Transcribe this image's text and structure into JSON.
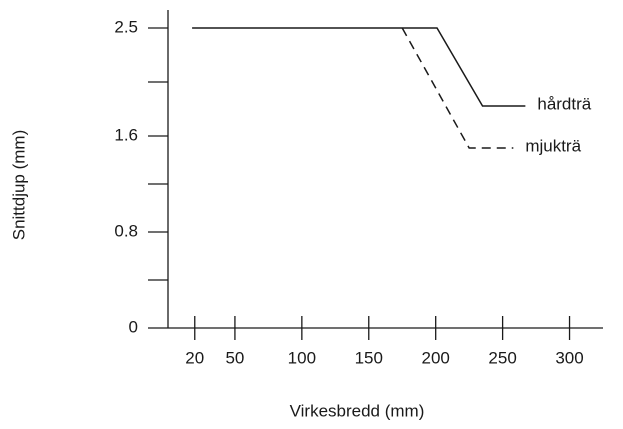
{
  "chart_data": {
    "type": "line",
    "xlabel": "Virkesbredd (mm)",
    "ylabel": "Snittdjup (mm)",
    "xlim": [
      0,
      325
    ],
    "xticks": [
      20,
      50,
      100,
      150,
      200,
      250,
      300
    ],
    "ylim": [
      0,
      2.65
    ],
    "yticks": [
      0,
      0.8,
      1.6,
      2.5
    ],
    "yminorticks": [
      0.4,
      1.2,
      2.05
    ],
    "series": [
      {
        "name": "hårdträ",
        "color": "#1a1a1a",
        "dashed": false,
        "x": [
          18,
          201,
          235,
          267
        ],
        "values": [
          2.5,
          2.5,
          1.85,
          1.85
        ]
      },
      {
        "name": "mjukträ",
        "color": "#1a1a1a",
        "dashed": true,
        "x": [
          175,
          225,
          258
        ],
        "values": [
          2.5,
          1.5,
          1.5
        ]
      }
    ]
  }
}
